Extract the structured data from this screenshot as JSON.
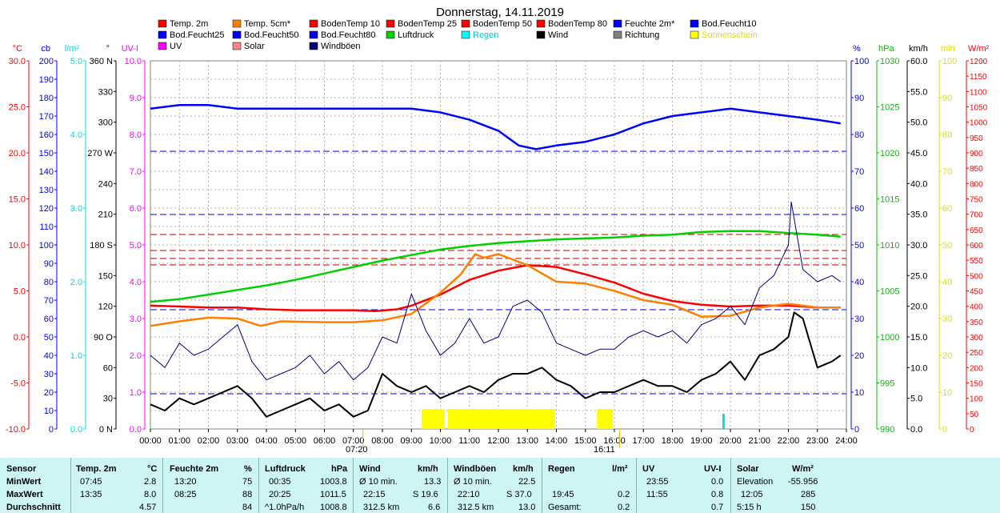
{
  "chart_data": {
    "type": "line",
    "title": "Donnerstag, 14.11.2019",
    "x_ticks": [
      "00:00",
      "01:00",
      "02:00",
      "03:00",
      "04:00",
      "05:00",
      "06:00",
      "07:00",
      "08:00",
      "09:00",
      "10:00",
      "11:00",
      "12:00",
      "13:00",
      "14:00",
      "15:00",
      "16:00",
      "17:00",
      "18:00",
      "19:00",
      "20:00",
      "21:00",
      "22:00",
      "23:00",
      "24:00"
    ],
    "sunrise": "07:20",
    "sunset": "16:11",
    "legend": [
      {
        "label": "Temp. 2m",
        "color": "#ff0000"
      },
      {
        "label": "Temp. 5cm*",
        "color": "#ff8000"
      },
      {
        "label": "BodenTemp 10",
        "color": "#ff0000"
      },
      {
        "label": "BodenTemp 25",
        "color": "#ff0000"
      },
      {
        "label": "BodenTemp 50",
        "color": "#ff0000"
      },
      {
        "label": "BodenTemp 80",
        "color": "#ff0000"
      },
      {
        "label": "Feuchte 2m*",
        "color": "#0000ff"
      },
      {
        "label": "Bod.Feucht10",
        "color": "#0000ff"
      },
      {
        "label": "Bod.Feucht25",
        "color": "#0000ff"
      },
      {
        "label": "Bod.Feucht50",
        "color": "#0000ff"
      },
      {
        "label": "Bod.Feucht80",
        "color": "#0000ff"
      },
      {
        "label": "Luftdruck",
        "color": "#00d000"
      },
      {
        "label": "Regen",
        "color": "#00ffff"
      },
      {
        "label": "Wind",
        "color": "#000000"
      },
      {
        "label": "Richtung",
        "color": "#808080"
      },
      {
        "label": "Sonnenschein",
        "color": "#ffff00"
      },
      {
        "label": "UV",
        "color": "#ff00ff"
      },
      {
        "label": "Solar",
        "color": "#ff8080"
      },
      {
        "label": "Windböen",
        "color": "#000080"
      }
    ],
    "left_axes": [
      {
        "unit": "°C",
        "color": "#ff0000",
        "ticks": [
          "30.0",
          "25.0",
          "20.0",
          "15.0",
          "10.0",
          "5.0",
          "0.0",
          "-5.0",
          "-10.0"
        ]
      },
      {
        "unit": "cb",
        "color": "#0000ff",
        "ticks": [
          "200",
          "190",
          "180",
          "170",
          "160",
          "150",
          "140",
          "130",
          "120",
          "110",
          "100",
          "90",
          "80",
          "70",
          "60",
          "50",
          "40",
          "30",
          "20",
          "10",
          "0"
        ]
      },
      {
        "unit": "l/m²",
        "color": "#00e0e0",
        "ticks": [
          "5.0",
          "4.0",
          "3.0",
          "2.0",
          "1.0",
          "0.0"
        ]
      },
      {
        "unit": "°",
        "color": "#000000",
        "ticks": [
          "360 N",
          "330",
          "300",
          "270 W",
          "240",
          "210",
          "180 S",
          "150",
          "120",
          "90  O",
          "60",
          "30",
          "0  N"
        ]
      },
      {
        "unit": "UV-I",
        "color": "#ff00ff",
        "ticks": [
          "10.0",
          "9.0",
          "8.0",
          "7.0",
          "6.0",
          "5.0",
          "4.0",
          "3.0",
          "2.0",
          "1.0",
          "0.0"
        ]
      }
    ],
    "right_axes": [
      {
        "unit": "%",
        "color": "#0000ff",
        "ticks": [
          "100",
          "90",
          "80",
          "70",
          "60",
          "50",
          "40",
          "30",
          "20",
          "10",
          "0"
        ]
      },
      {
        "unit": "hPa",
        "color": "#00c000",
        "ticks": [
          "1030",
          "1025",
          "1020",
          "1015",
          "1010",
          "1005",
          "1000",
          "995",
          "990"
        ]
      },
      {
        "unit": "km/h",
        "color": "#000000",
        "ticks": [
          "60.0",
          "55.0",
          "50.0",
          "45.0",
          "40.0",
          "35.0",
          "30.0",
          "25.0",
          "20.0",
          "15.0",
          "10.0",
          "5.0",
          "0.0"
        ]
      },
      {
        "unit": "min",
        "color": "#e0e000",
        "ticks": [
          "100",
          "90",
          "80",
          "70",
          "60",
          "50",
          "40",
          "30",
          "20",
          "10",
          "0"
        ]
      },
      {
        "unit": "W/m²",
        "color": "#ff0000",
        "ticks": [
          "1200",
          "1150",
          "1100",
          "1050",
          "1000",
          "950",
          "900",
          "850",
          "800",
          "750",
          "700",
          "650",
          "600",
          "550",
          "500",
          "450",
          "400",
          "350",
          "300",
          "250",
          "200",
          "150",
          "100",
          "50",
          "0"
        ]
      }
    ],
    "series": [
      {
        "name": "Feuchte 2m*",
        "unit": "%",
        "color": "#0000ff",
        "x": [
          0,
          1,
          2,
          3,
          4,
          5,
          6,
          7,
          8,
          9,
          10,
          11,
          12,
          12.7,
          13.3,
          14,
          15,
          16,
          17,
          18,
          19,
          20,
          21,
          22,
          23,
          23.8
        ],
        "y": [
          87,
          88,
          88,
          87,
          87,
          87,
          87,
          87,
          87,
          87,
          86,
          84,
          81,
          77,
          76,
          77,
          78,
          80,
          83,
          85,
          86,
          87,
          86,
          85,
          84,
          83
        ]
      },
      {
        "name": "Luftdruck",
        "unit": "hPa",
        "color": "#00d000",
        "x": [
          0,
          1,
          2,
          3,
          4,
          5,
          6,
          7,
          8,
          9,
          10,
          11,
          12,
          13,
          14,
          15,
          16,
          17,
          18,
          19,
          20,
          21,
          22,
          23,
          23.8
        ],
        "y": [
          1003.8,
          1004.1,
          1004.6,
          1005.1,
          1005.6,
          1006.2,
          1006.9,
          1007.6,
          1008.3,
          1008.9,
          1009.5,
          1009.9,
          1010.2,
          1010.4,
          1010.6,
          1010.7,
          1010.8,
          1011.0,
          1011.1,
          1011.4,
          1011.5,
          1011.5,
          1011.3,
          1011.1,
          1010.9
        ]
      },
      {
        "name": "Temp. 2m",
        "unit": "°C",
        "color": "#ff0000",
        "x": [
          0,
          1,
          2,
          3,
          4,
          5,
          6,
          7,
          7.75,
          8.5,
          9,
          10,
          11,
          12,
          13,
          14,
          15,
          16,
          17,
          18,
          19,
          20,
          21,
          22,
          23,
          23.8
        ],
        "y": [
          3.4,
          3.3,
          3.2,
          3.2,
          3.0,
          2.9,
          2.9,
          2.9,
          2.8,
          3.0,
          3.4,
          4.6,
          6.2,
          7.2,
          7.8,
          7.6,
          6.8,
          5.9,
          4.7,
          3.9,
          3.5,
          3.3,
          3.4,
          3.4,
          3.2,
          3.2
        ]
      },
      {
        "name": "Temp. 5cm*",
        "unit": "°C",
        "color": "#ff8000",
        "x": [
          0,
          1,
          2,
          3,
          3.8,
          4.5,
          6,
          7,
          8,
          9,
          10,
          10.7,
          11.2,
          11.5,
          12,
          13,
          14,
          15,
          16,
          17,
          18,
          19,
          20,
          21,
          22,
          23,
          23.8
        ],
        "y": [
          1.2,
          1.7,
          2.1,
          2.0,
          1.2,
          1.7,
          1.6,
          1.6,
          1.8,
          2.5,
          4.8,
          6.8,
          9.0,
          8.6,
          9.0,
          7.8,
          6.0,
          5.8,
          5.0,
          4.0,
          3.5,
          2.2,
          2.3,
          3.2,
          3.6,
          3.2,
          3.2
        ]
      },
      {
        "name": "Wind",
        "unit": "km/h",
        "color": "#000000",
        "x": [
          0,
          0.5,
          1,
          1.5,
          2,
          2.5,
          3,
          3.5,
          4,
          4.5,
          5,
          5.5,
          6,
          6.5,
          7,
          7.5,
          8,
          8.5,
          9,
          9.5,
          10,
          10.5,
          11,
          11.5,
          12,
          12.5,
          13,
          13.5,
          14,
          14.5,
          15,
          15.5,
          16,
          16.5,
          17,
          17.5,
          18,
          18.5,
          19,
          19.5,
          20,
          20.5,
          21,
          21.5,
          22,
          22.2,
          22.5,
          23,
          23.5,
          23.8
        ],
        "y": [
          4,
          3,
          5,
          4,
          5,
          6,
          7,
          5,
          2,
          3,
          4,
          5,
          3,
          4,
          2,
          3,
          9,
          7,
          6,
          7,
          5,
          6,
          7,
          6,
          8,
          9,
          9,
          10,
          8,
          7,
          5,
          6,
          6,
          7,
          8,
          7,
          7,
          6,
          8,
          9,
          11,
          8,
          12,
          13,
          15,
          19,
          18,
          10,
          11,
          12
        ]
      },
      {
        "name": "Windböen",
        "unit": "km/h",
        "color": "#000080",
        "x": [
          0,
          0.5,
          1,
          1.5,
          2,
          2.5,
          3,
          3.5,
          4,
          4.5,
          5,
          5.5,
          6,
          6.5,
          7,
          7.5,
          8,
          8.5,
          9,
          9.5,
          10,
          10.5,
          11,
          11.5,
          12,
          12.5,
          13,
          13.5,
          14,
          14.5,
          15,
          15.5,
          16,
          16.5,
          17,
          17.5,
          18,
          18.5,
          19,
          19.5,
          20,
          20.5,
          21,
          21.5,
          22,
          22.1,
          22.5,
          23,
          23.5,
          23.8
        ],
        "y": [
          12,
          10,
          14,
          12,
          13,
          15,
          17,
          11,
          8,
          9,
          10,
          12,
          9,
          11,
          8,
          10,
          15,
          14,
          22,
          16,
          12,
          14,
          18,
          14,
          15,
          20,
          21,
          19,
          14,
          13,
          12,
          13,
          13,
          15,
          16,
          15,
          16,
          14,
          17,
          18,
          20,
          17,
          23,
          25,
          30,
          37,
          26,
          24,
          25,
          24
        ]
      }
    ],
    "sunshine_intervals": [
      [
        9.35,
        10.15
      ],
      [
        10.25,
        13.95
      ],
      [
        15.4,
        15.95
      ]
    ]
  },
  "stats": {
    "col_sensor": "Sensor",
    "row_min": "MinWert",
    "row_max": "MaxWert",
    "row_avg": "Durchschnitt",
    "temp": {
      "h": "Temp. 2m",
      "u": "°C",
      "min_t": "07:45",
      "min_v": "2.8",
      "max_t": "13:35",
      "max_v": "8.0",
      "avg": "4.57"
    },
    "feuchte": {
      "h": "Feuchte 2m",
      "u": "%",
      "min_t": "13:20",
      "min_v": "75",
      "max_t": "08:25",
      "max_v": "88",
      "avg": "84"
    },
    "luft": {
      "h": "Luftdruck",
      "u": "hPa",
      "min_t": "00:35",
      "min_v": "1003.8",
      "max_t": "20:25",
      "max_v": "1011.5",
      "avg_l": "^1.0hPa/h",
      "avg": "1008.8"
    },
    "wind": {
      "h": "Wind",
      "u": "km/h",
      "min_t": "Ø 10 min.",
      "min_v": "13.3",
      "max_t": "22:15",
      "max_d": "S 19.6",
      "avg_l": "312.5 km",
      "avg": "6.6"
    },
    "boen": {
      "h": "Windböen",
      "u": "km/h",
      "min_t": "Ø 10 min.",
      "min_v": "22.5",
      "max_t": "22:10",
      "max_d": "S 37.0",
      "avg_l": "312.5 km",
      "avg": "13.0"
    },
    "regen": {
      "h": "Regen",
      "u": "l/m²",
      "max_t": "19:45",
      "max_v": "0.2",
      "avg_l": "Gesamt:",
      "avg": "0.2"
    },
    "uv": {
      "h": "UV",
      "u": "UV-I",
      "min_t": "23:55",
      "min_v": "0.0",
      "max_t": "11:55",
      "max_v": "0.8",
      "avg": "0.7"
    },
    "solar": {
      "h": "Solar",
      "u": "W/m²",
      "min_t": "Elevation",
      "min_v": "-55.956",
      "max_t": "12:05",
      "max_v": "285",
      "avg_l": "5:15 h",
      "avg": "150"
    }
  }
}
